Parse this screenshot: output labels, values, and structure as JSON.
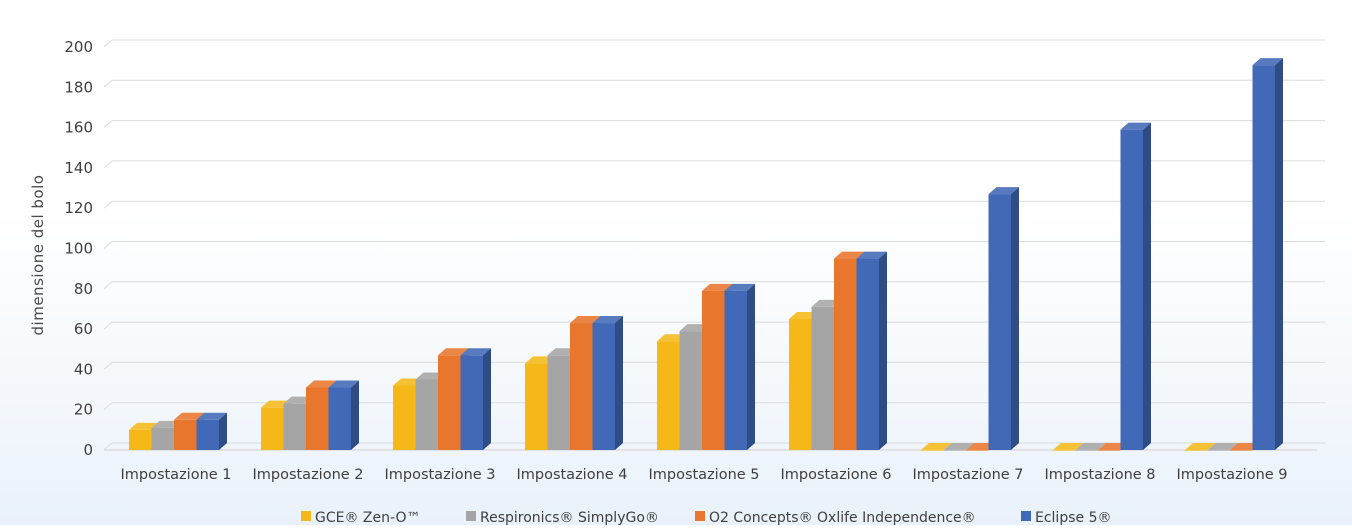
{
  "chart_data": {
    "type": "bar",
    "title": "",
    "xlabel": "",
    "ylabel": "dimensione del bolo",
    "ylim": [
      0,
      200
    ],
    "yticks": [
      0,
      20,
      40,
      60,
      80,
      100,
      120,
      140,
      160,
      180,
      200
    ],
    "grid": true,
    "legend_position": "bottom",
    "categories": [
      "Impostazione 1",
      "Impostazione 2",
      "Impostazione 3",
      "Impostazione 4",
      "Impostazione 5",
      "Impostazione 6",
      "Impostazione 7",
      "Impostazione 8",
      "Impostazione 9"
    ],
    "series": [
      {
        "name": "GCE® Zen-O™",
        "color": "#F5B818",
        "values": [
          10,
          21,
          32,
          43,
          54,
          65,
          0,
          0,
          0
        ]
      },
      {
        "name": "Respironics® SimplyGo®",
        "color": "#A5A5A5",
        "values": [
          11,
          23,
          35,
          47,
          59,
          71,
          0,
          0,
          0
        ]
      },
      {
        "name": "O2 Concepts® Oxlife Independence®",
        "color": "#E8762D",
        "values": [
          15,
          31,
          47,
          63,
          79,
          95,
          0,
          0,
          0
        ]
      },
      {
        "name": "Eclipse 5®",
        "color": "#4169B7",
        "values": [
          15,
          31,
          47,
          63,
          79,
          95,
          127,
          159,
          191
        ]
      }
    ]
  }
}
